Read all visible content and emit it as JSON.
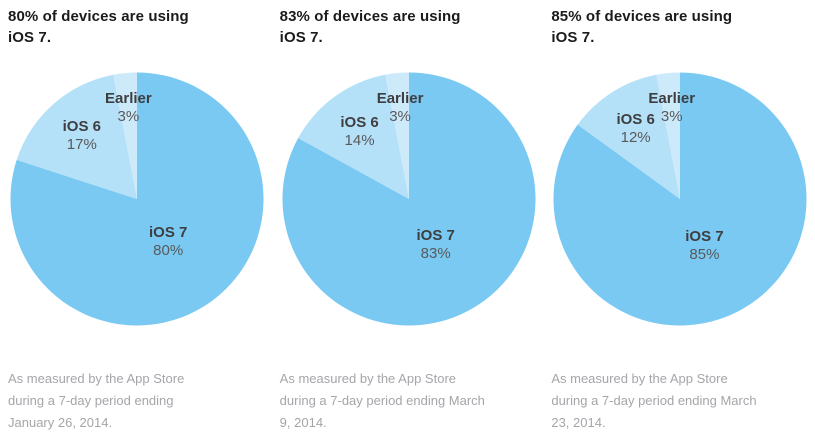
{
  "slice_colors": [
    "#79C9F3",
    "#B4E0F8",
    "#CDEAFB"
  ],
  "chart_data": [
    {
      "type": "pie",
      "title": "80% of devices are using iOS 7.",
      "footer": "As measured by the App Store during a 7-day period ending January 26, 2014.",
      "start_angle_deg": 0,
      "direction": "clockwise",
      "slices": [
        {
          "name": "iOS 7",
          "value": 80,
          "display": "80%"
        },
        {
          "name": "iOS 6",
          "value": 17,
          "display": "17%"
        },
        {
          "name": "Earlier",
          "value": 3,
          "display": "3%"
        }
      ]
    },
    {
      "type": "pie",
      "title": "83% of devices are using iOS 7.",
      "footer": "As measured by the App Store during a 7-day period ending March 9, 2014.",
      "start_angle_deg": 0,
      "direction": "clockwise",
      "slices": [
        {
          "name": "iOS 7",
          "value": 83,
          "display": "83%"
        },
        {
          "name": "iOS 6",
          "value": 14,
          "display": "14%"
        },
        {
          "name": "Earlier",
          "value": 3,
          "display": "3%"
        }
      ]
    },
    {
      "type": "pie",
      "title": "85% of devices are using iOS 7.",
      "footer": "As measured by the App Store during a 7-day period ending March 23, 2014.",
      "start_angle_deg": 0,
      "direction": "clockwise",
      "slices": [
        {
          "name": "iOS 7",
          "value": 85,
          "display": "85%"
        },
        {
          "name": "iOS 6",
          "value": 12,
          "display": "12%"
        },
        {
          "name": "Earlier",
          "value": 3,
          "display": "3%"
        }
      ]
    }
  ]
}
